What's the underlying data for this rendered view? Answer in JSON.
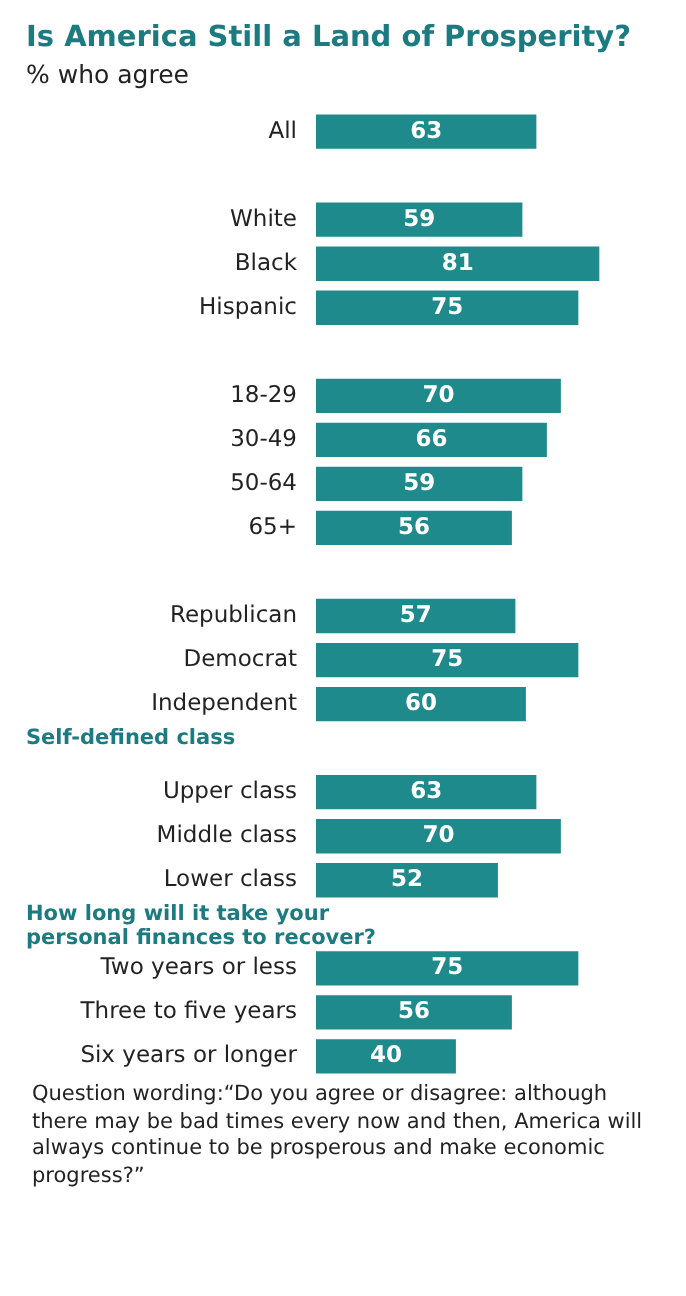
{
  "chart_data": {
    "type": "bar",
    "orientation": "horizontal",
    "title": "Is America Still a Land of Prosperity?",
    "subtitle": "% who agree",
    "categories": [
      "All",
      null,
      "White",
      "Black",
      "Hispanic",
      null,
      "18-29",
      "30-49",
      "50-64",
      "65+",
      null,
      "Republican",
      "Democrat",
      "Independent",
      null,
      "Upper class",
      "Middle class",
      "Lower class",
      null,
      "Two years or less",
      "Three to five years",
      "Six years or longer"
    ],
    "series": [
      {
        "color": "#1f8a8c",
        "values": [
          63,
          null,
          59,
          81,
          75,
          null,
          70,
          66,
          59,
          56,
          null,
          57,
          75,
          60,
          null,
          63,
          70,
          52,
          null,
          75,
          56,
          40
        ]
      }
    ],
    "data_labels": true,
    "annotations": [
      "Self-defined  class",
      "How long will it take your personal finances  to recover?",
      "Question wording:“Do you agree or disagree: although there may be bad times every now and then, America will always continue to be prosperous and make economic progress?”"
    ]
  }
}
